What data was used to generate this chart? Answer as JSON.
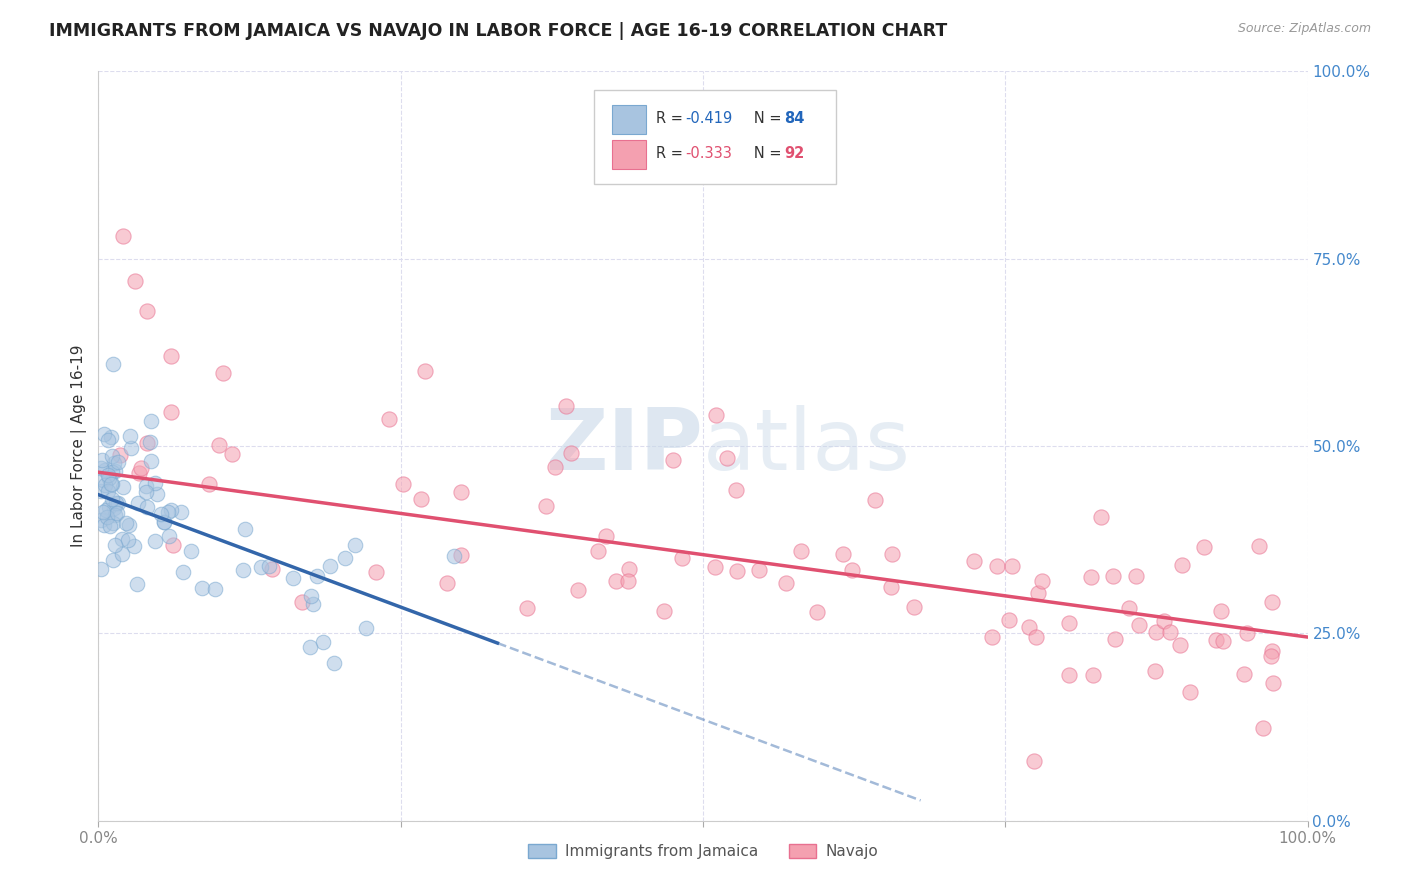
{
  "title": "IMMIGRANTS FROM JAMAICA VS NAVAJO IN LABOR FORCE | AGE 16-19 CORRELATION CHART",
  "source": "Source: ZipAtlas.com",
  "ylabel": "In Labor Force | Age 16-19",
  "ytick_labels": [
    "0.0%",
    "25.0%",
    "50.0%",
    "75.0%",
    "100.0%"
  ],
  "ytick_values": [
    0.0,
    0.25,
    0.5,
    0.75,
    1.0
  ],
  "xtick_labels": [
    "0.0%",
    "",
    "",
    "",
    "100.0%"
  ],
  "xtick_values": [
    0.0,
    0.25,
    0.5,
    0.75,
    1.0
  ],
  "xlim": [
    0.0,
    1.0
  ],
  "ylim": [
    0.0,
    1.0
  ],
  "watermark_text": "ZIPatlas",
  "legend_r1": "R = -0.419",
  "legend_n1": "N = 84",
  "legend_r2": "R = -0.333",
  "legend_n2": "N = 92",
  "series1_color": "#a8c4e0",
  "series1_edge": "#7aa8d0",
  "series2_color": "#f4a0b0",
  "series2_edge": "#e87090",
  "trendline1_color": "#3366aa",
  "trendline2_color": "#e05070",
  "background_color": "#ffffff",
  "grid_color": "#ddddee",
  "title_color": "#222222",
  "ylabel_color": "#333333",
  "ytick_color": "#4488cc",
  "xtick_color": "#888888",
  "source_color": "#999999",
  "jam_trend_intercept": 0.435,
  "jam_trend_slope": -0.6,
  "jam_trend_solid_end": 0.33,
  "jam_trend_dash_end": 0.68,
  "nav_trend_intercept": 0.465,
  "nav_trend_slope": -0.22
}
